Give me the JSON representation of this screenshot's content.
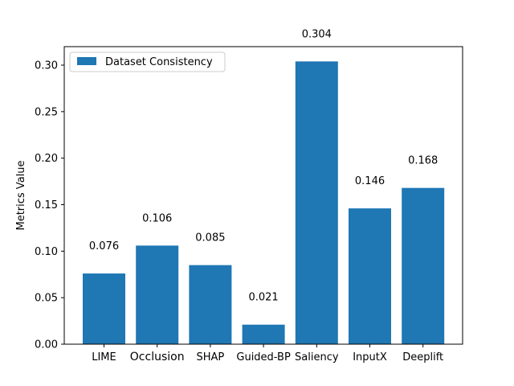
{
  "chart_data": {
    "type": "bar",
    "categories": [
      "LIME",
      "Occlusion",
      "SHAP",
      "Guided-BP",
      "Saliency",
      "InputX",
      "Deeplift"
    ],
    "series": [
      {
        "name": "Dataset Consistency",
        "values": [
          0.076,
          0.106,
          0.085,
          0.021,
          0.304,
          0.146,
          0.168
        ],
        "color": "#1f77b4"
      }
    ],
    "data_labels": [
      "0.076",
      "0.106",
      "0.085",
      "0.021",
      "0.304",
      "0.146",
      "0.168"
    ],
    "title": "",
    "xlabel": "",
    "ylabel": "Metrics Value",
    "ylim": [
      0,
      0.3
    ],
    "yticks": [
      0.0,
      0.05,
      0.1,
      0.15,
      0.2,
      0.25,
      0.3
    ],
    "ytick_labels": [
      "0.00",
      "0.05",
      "0.10",
      "0.15",
      "0.20",
      "0.25",
      "0.30"
    ],
    "grid": false,
    "legend_position": "top-left"
  }
}
